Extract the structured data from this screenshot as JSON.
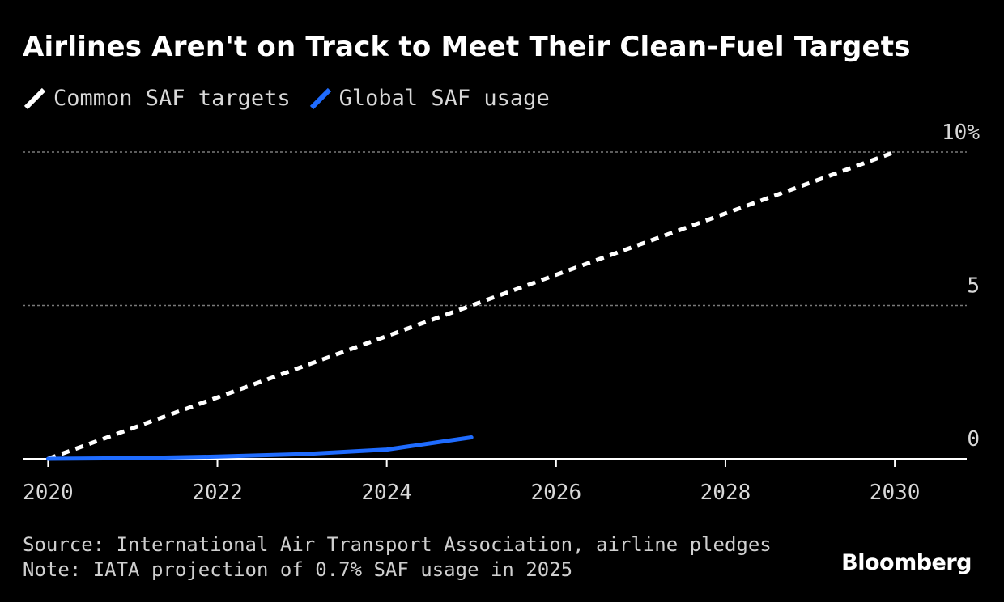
{
  "title": "Airlines Aren't on Track to Meet Their Clean-Fuel Targets",
  "legend": [
    {
      "label": "Common SAF targets",
      "color": "#ffffff"
    },
    {
      "label": "Global SAF usage",
      "color": "#1f6cff"
    }
  ],
  "footer": {
    "source": "Source: International Air Transport Association, airline pledges",
    "note": "Note: IATA projection of 0.7% SAF usage in 2025"
  },
  "brand": "Bloomberg",
  "chart_data": {
    "type": "line",
    "xlim": [
      2019.7,
      2030.85
    ],
    "ylim": [
      0,
      10
    ],
    "x_ticks": [
      2020,
      2022,
      2024,
      2026,
      2028,
      2030
    ],
    "x_tick_labels": [
      "2020",
      "2022",
      "2024",
      "2026",
      "2028",
      "2030"
    ],
    "y_ticks": [
      0,
      5,
      10
    ],
    "y_tick_labels": [
      "0",
      "5",
      "10%"
    ],
    "grid": "horizontal dotted",
    "series": [
      {
        "name": "Common SAF targets",
        "style": "dashed",
        "color": "#ffffff",
        "points": [
          {
            "x": 2020,
            "y": 0
          },
          {
            "x": 2030,
            "y": 10
          }
        ]
      },
      {
        "name": "Global SAF usage",
        "style": "solid",
        "color": "#1f6cff",
        "points": [
          {
            "x": 2020,
            "y": 0.0
          },
          {
            "x": 2021,
            "y": 0.02
          },
          {
            "x": 2022,
            "y": 0.07
          },
          {
            "x": 2023,
            "y": 0.15
          },
          {
            "x": 2024,
            "y": 0.3
          },
          {
            "x": 2025,
            "y": 0.7
          }
        ]
      }
    ]
  }
}
